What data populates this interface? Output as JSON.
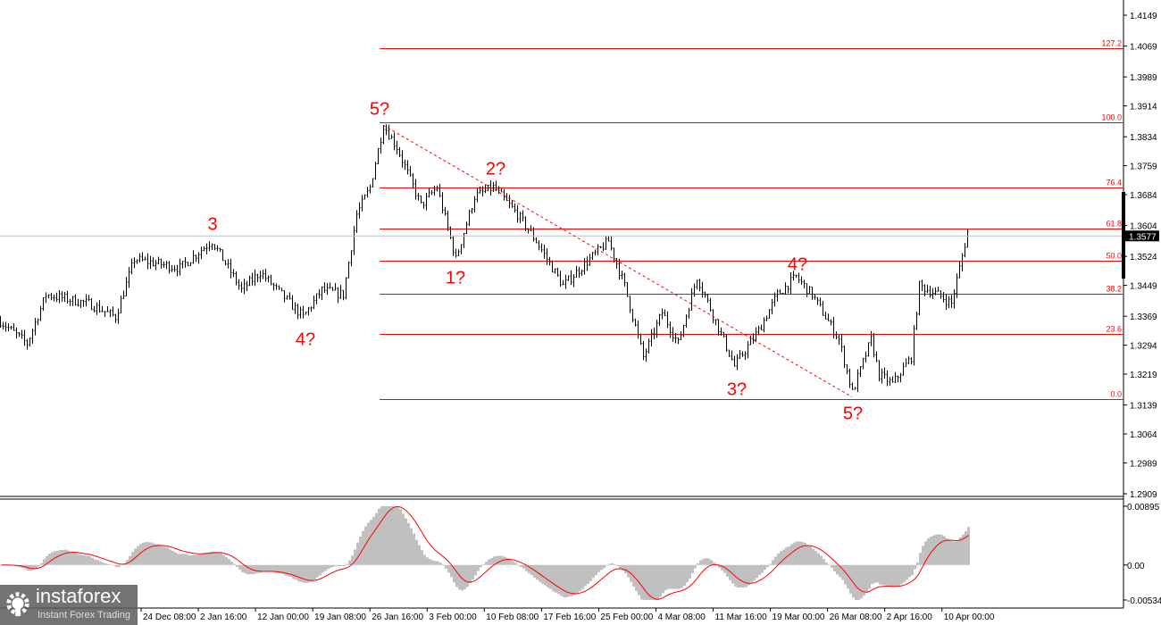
{
  "chart_data": {
    "type": "candlestick",
    "price_axis": {
      "ticks": [
        "1.4149",
        "1.4069",
        "1.3989",
        "1.3914",
        "1.3834",
        "1.3759",
        "1.3684",
        "1.3604",
        "1.3524",
        "1.3449",
        "1.3369",
        "1.3294",
        "1.3219",
        "1.3139",
        "1.3064",
        "1.2989",
        "1.2909"
      ],
      "ylim": [
        1.2909,
        1.4149
      ],
      "current_price": "1.3577"
    },
    "time_axis": {
      "ticks": [
        "24 Dec 08:00",
        "2 Jan 16:00",
        "12 Jan 00:00",
        "19 Jan 08:00",
        "26 Jan 16:00",
        "3 Feb 00:00",
        "10 Feb 08:00",
        "17 Feb 16:00",
        "25 Feb 00:00",
        "4 Mar 08:00",
        "11 Mar 16:00",
        "19 Mar 00:00",
        "26 Mar 08:00",
        "2 Apr 16:00",
        "10 Apr 00:00"
      ]
    },
    "price_path": [
      [
        0,
        1.3356
      ],
      [
        10,
        1.3298
      ],
      [
        17,
        1.3425
      ],
      [
        33,
        1.3402
      ],
      [
        43,
        1.3367
      ],
      [
        50,
        1.3517
      ],
      [
        67,
        1.3494
      ],
      [
        79,
        1.3564
      ],
      [
        90,
        1.3437
      ],
      [
        97,
        1.3483
      ],
      [
        113,
        1.3367
      ],
      [
        120,
        1.3437
      ],
      [
        128,
        1.3425
      ],
      [
        133,
        1.3633
      ],
      [
        138,
        1.3703
      ],
      [
        143,
        1.3864
      ],
      [
        148,
        1.3807
      ],
      [
        157,
        1.3656
      ],
      [
        163,
        1.3703
      ],
      [
        170,
        1.3517
      ],
      [
        177,
        1.3679
      ],
      [
        184,
        1.3703
      ],
      [
        193,
        1.3633
      ],
      [
        200,
        1.3564
      ],
      [
        210,
        1.3448
      ],
      [
        220,
        1.3517
      ],
      [
        227,
        1.3564
      ],
      [
        233,
        1.3448
      ],
      [
        240,
        1.3263
      ],
      [
        247,
        1.3379
      ],
      [
        253,
        1.3298
      ],
      [
        260,
        1.3471
      ],
      [
        267,
        1.3356
      ],
      [
        274,
        1.324
      ],
      [
        283,
        1.3332
      ],
      [
        290,
        1.3425
      ],
      [
        297,
        1.3471
      ],
      [
        303,
        1.3425
      ],
      [
        313,
        1.3309
      ],
      [
        318,
        1.3171
      ],
      [
        325,
        1.3309
      ],
      [
        328,
        1.3217
      ],
      [
        333,
        1.3194
      ],
      [
        340,
        1.3263
      ],
      [
        343,
        1.3448
      ],
      [
        350,
        1.3425
      ],
      [
        355,
        1.3402
      ],
      [
        361,
        1.3587
      ]
    ],
    "fibonacci": {
      "levels": [
        {
          "label": "127.2",
          "price": 1.4063
        },
        {
          "label": "100.0",
          "price": 1.3871
        },
        {
          "label": "76.4",
          "price": 1.3702
        },
        {
          "label": "61.8",
          "price": 1.3597
        },
        {
          "label": "50.0",
          "price": 1.3513
        },
        {
          "label": "38.2",
          "price": 1.3428
        },
        {
          "label": "23.6",
          "price": 1.3323
        },
        {
          "label": "0.0",
          "price": 1.3154
        }
      ],
      "color": "#ff0000"
    },
    "wave_labels": [
      "3",
      "4?",
      "5?",
      "2?",
      "1?",
      "3?",
      "4?",
      "5?"
    ],
    "indicator": {
      "type": "MACD",
      "ticks": [
        "0.00895",
        "0.00",
        "-0.00534"
      ],
      "ylim": [
        -0.00534,
        0.00895
      ],
      "histogram_color": "#c0c0c0",
      "signal_color": "#ff0000"
    }
  },
  "logo": {
    "brand": "instaforex",
    "tagline": "Instant Forex Trading"
  }
}
